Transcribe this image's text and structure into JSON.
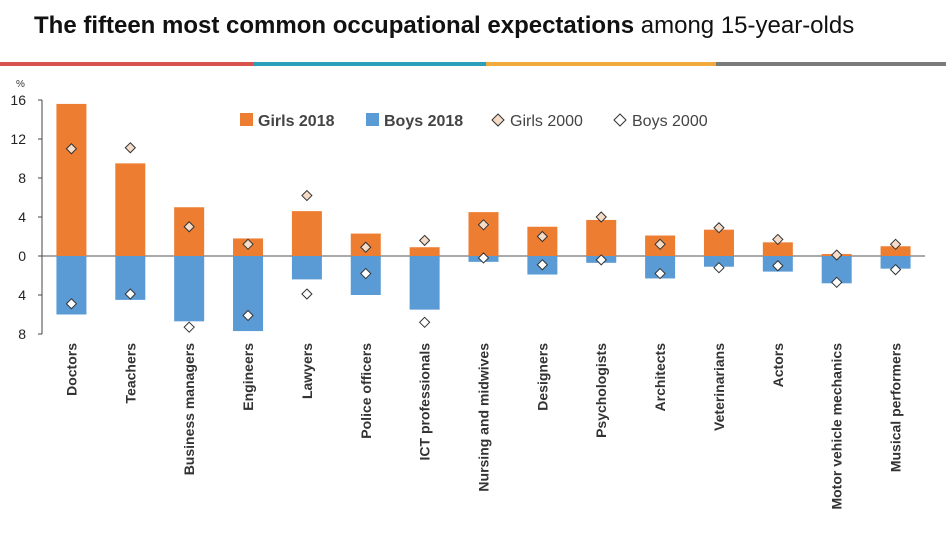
{
  "title_bold": "The fifteen most common occupational expectations",
  "title_rest": "among 15-year-olds",
  "rule_colors": [
    "#d9534f",
    "#2e9fb8",
    "#f2a93b",
    "#7a7a7a"
  ],
  "chart_data": {
    "type": "bar",
    "unit_label": "%",
    "categories": [
      "Doctors",
      "Teachers",
      "Business managers",
      "Engineers",
      "Lawyers",
      "Police officers",
      "ICT professionals",
      "Nursing and midwives",
      "Designers",
      "Psychologists",
      "Architects",
      "Veterinarians",
      "Actors",
      "Motor vehicle mechanics",
      "Musical performers"
    ],
    "series": [
      {
        "name": "Girls 2018",
        "kind": "bar",
        "direction": "up",
        "color": "#ed7d31",
        "values": [
          15.6,
          9.5,
          5.0,
          1.8,
          4.6,
          2.3,
          0.9,
          4.5,
          3.0,
          3.7,
          2.1,
          2.7,
          1.4,
          0.2,
          1.0
        ]
      },
      {
        "name": "Boys 2018",
        "kind": "bar",
        "direction": "down",
        "color": "#5b9bd5",
        "values": [
          6.0,
          4.5,
          6.7,
          7.7,
          2.4,
          4.0,
          5.5,
          0.6,
          1.9,
          0.7,
          2.3,
          1.1,
          1.6,
          2.8,
          1.3
        ]
      },
      {
        "name": "Girls 2000",
        "kind": "marker",
        "direction": "up",
        "color": "#f4dcc8",
        "values": [
          11.0,
          11.1,
          3.0,
          1.2,
          6.2,
          0.9,
          1.6,
          3.2,
          2.0,
          4.0,
          1.2,
          2.9,
          1.7,
          0.1,
          1.2
        ]
      },
      {
        "name": "Boys 2000",
        "kind": "marker",
        "direction": "down",
        "color": "#ffffff",
        "values": [
          4.9,
          3.9,
          7.3,
          6.1,
          3.9,
          1.8,
          6.8,
          0.2,
          0.9,
          0.4,
          1.8,
          1.2,
          1.0,
          2.7,
          1.4
        ]
      }
    ],
    "y_ticks": [
      {
        "value": 16,
        "label": "16"
      },
      {
        "value": 12,
        "label": "12"
      },
      {
        "value": 8,
        "label": "8"
      },
      {
        "value": 4,
        "label": "4"
      },
      {
        "value": 0,
        "label": "0"
      },
      {
        "value": -4,
        "label": "4"
      },
      {
        "value": -8,
        "label": "8"
      }
    ],
    "ylim": [
      -8,
      16
    ],
    "grid": false,
    "legend_position": "top-center",
    "xlabel": "",
    "ylabel": "%"
  }
}
